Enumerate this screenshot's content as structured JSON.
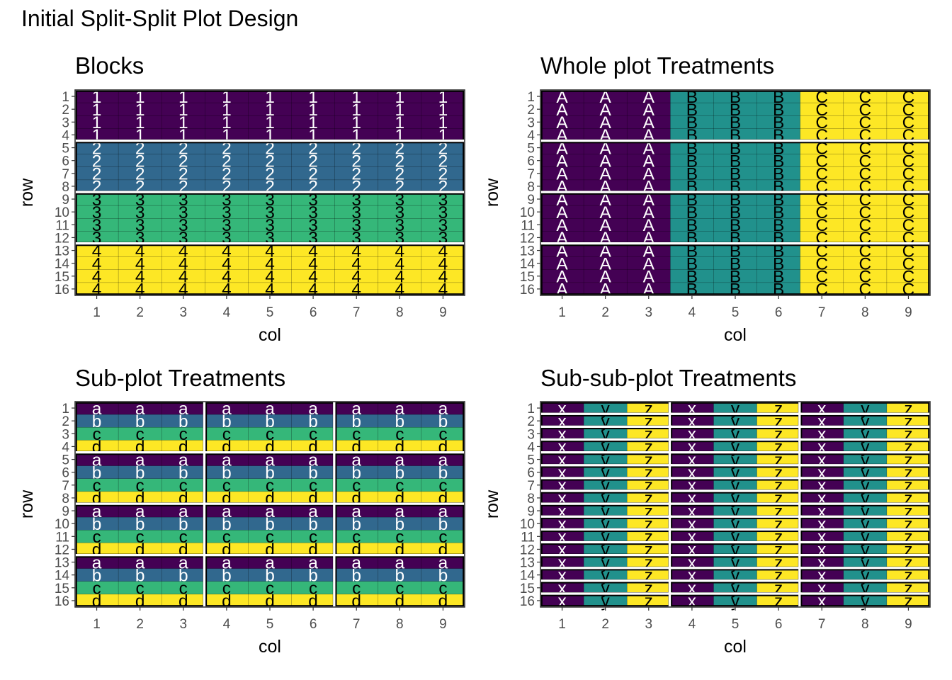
{
  "title": "Initial Split-Split Plot Design",
  "colors": {
    "purple": "#440154",
    "blue": "#31688E",
    "teal": "#21918C",
    "green": "#35B779",
    "yellow": "#FDE725",
    "plot_border": "#333333",
    "tick_text": "#4D4D4D"
  },
  "chart_data": [
    {
      "type": "heatmap",
      "title": "Blocks",
      "xlabel": "col",
      "ylabel": "row",
      "x": [
        1,
        2,
        3,
        4,
        5,
        6,
        7,
        8,
        9
      ],
      "y": [
        1,
        2,
        3,
        4,
        5,
        6,
        7,
        8,
        9,
        10,
        11,
        12,
        13,
        14,
        15,
        16
      ],
      "xticklabels": [
        "1",
        "2",
        "3",
        "4",
        "5",
        "6",
        "7",
        "8",
        "9"
      ],
      "yticklabels": [
        "1",
        "2",
        "3",
        "4",
        "5",
        "6",
        "7",
        "8",
        "9",
        "10",
        "11",
        "12",
        "13",
        "14",
        "15",
        "16"
      ],
      "factor": "block",
      "levels": [
        "1",
        "2",
        "3",
        "4"
      ],
      "level_colors": [
        "#440154",
        "#31688E",
        "#35B779",
        "#FDE725"
      ],
      "label_colors": [
        "#FFFFFF",
        "#FFFFFF",
        "#000000",
        "#000000"
      ],
      "assignment": "block = ceil(row / 4)",
      "row_groups": [
        [
          1,
          4
        ],
        [
          5,
          8
        ],
        [
          9,
          12
        ],
        [
          13,
          16
        ]
      ],
      "col_groups": [
        [
          1,
          9
        ]
      ]
    },
    {
      "type": "heatmap",
      "title": "Whole plot Treatments",
      "xlabel": "col",
      "ylabel": "row",
      "x": [
        1,
        2,
        3,
        4,
        5,
        6,
        7,
        8,
        9
      ],
      "y": [
        1,
        2,
        3,
        4,
        5,
        6,
        7,
        8,
        9,
        10,
        11,
        12,
        13,
        14,
        15,
        16
      ],
      "xticklabels": [
        "1",
        "2",
        "3",
        "4",
        "5",
        "6",
        "7",
        "8",
        "9"
      ],
      "yticklabels": [
        "1",
        "2",
        "3",
        "4",
        "5",
        "6",
        "7",
        "8",
        "9",
        "10",
        "11",
        "12",
        "13",
        "14",
        "15",
        "16"
      ],
      "factor": "whole-plot treatment",
      "levels": [
        "A",
        "B",
        "C"
      ],
      "level_colors": [
        "#440154",
        "#21918C",
        "#FDE725"
      ],
      "label_colors": [
        "#FFFFFF",
        "#000000",
        "#000000"
      ],
      "assignment": "cols 1-3 = A, cols 4-6 = B, cols 7-9 = C",
      "row_groups": [
        [
          1,
          4
        ],
        [
          5,
          8
        ],
        [
          9,
          12
        ],
        [
          13,
          16
        ]
      ],
      "col_groups": [
        [
          1,
          9
        ]
      ]
    },
    {
      "type": "heatmap",
      "title": "Sub-plot Treatments",
      "xlabel": "col",
      "ylabel": "row",
      "x": [
        1,
        2,
        3,
        4,
        5,
        6,
        7,
        8,
        9
      ],
      "y": [
        1,
        2,
        3,
        4,
        5,
        6,
        7,
        8,
        9,
        10,
        11,
        12,
        13,
        14,
        15,
        16
      ],
      "xticklabels": [
        "1",
        "2",
        "3",
        "4",
        "5",
        "6",
        "7",
        "8",
        "9"
      ],
      "yticklabels": [
        "1",
        "2",
        "3",
        "4",
        "5",
        "6",
        "7",
        "8",
        "9",
        "10",
        "11",
        "12",
        "13",
        "14",
        "15",
        "16"
      ],
      "factor": "sub-plot treatment",
      "levels": [
        "a",
        "b",
        "c",
        "d"
      ],
      "level_colors": [
        "#440154",
        "#31688E",
        "#35B779",
        "#FDE725"
      ],
      "label_colors": [
        "#FFFFFF",
        "#FFFFFF",
        "#000000",
        "#000000"
      ],
      "assignment": "row 1,5,9,13 = a; 2,6,10,14 = b; 3,7,11,15 = c; 4,8,12,16 = d",
      "row_groups": [
        [
          1,
          4
        ],
        [
          5,
          8
        ],
        [
          9,
          12
        ],
        [
          13,
          16
        ]
      ],
      "col_groups": [
        [
          1,
          3
        ],
        [
          4,
          6
        ],
        [
          7,
          9
        ]
      ]
    },
    {
      "type": "heatmap",
      "title": "Sub-sub-plot Treatments",
      "xlabel": "col",
      "ylabel": "row",
      "x": [
        1,
        2,
        3,
        4,
        5,
        6,
        7,
        8,
        9
      ],
      "y": [
        1,
        2,
        3,
        4,
        5,
        6,
        7,
        8,
        9,
        10,
        11,
        12,
        13,
        14,
        15,
        16
      ],
      "xticklabels": [
        "1",
        "2",
        "3",
        "4",
        "5",
        "6",
        "7",
        "8",
        "9"
      ],
      "yticklabels": [
        "1",
        "2",
        "3",
        "4",
        "5",
        "6",
        "7",
        "8",
        "9",
        "10",
        "11",
        "12",
        "13",
        "14",
        "15",
        "16"
      ],
      "factor": "sub-sub-plot treatment",
      "levels": [
        "x",
        "y",
        "z"
      ],
      "level_colors": [
        "#440154",
        "#21918C",
        "#FDE725"
      ],
      "label_colors": [
        "#FFFFFF",
        "#000000",
        "#000000"
      ],
      "assignment": "col 1,4,7 = x; 2,5,8 = y; 3,6,9 = z",
      "row_groups": [
        [
          1,
          1
        ],
        [
          2,
          2
        ],
        [
          3,
          3
        ],
        [
          4,
          4
        ],
        [
          5,
          5
        ],
        [
          6,
          6
        ],
        [
          7,
          7
        ],
        [
          8,
          8
        ],
        [
          9,
          9
        ],
        [
          10,
          10
        ],
        [
          11,
          11
        ],
        [
          12,
          12
        ],
        [
          13,
          13
        ],
        [
          14,
          14
        ],
        [
          15,
          15
        ],
        [
          16,
          16
        ]
      ],
      "col_groups": [
        [
          1,
          3
        ],
        [
          4,
          6
        ],
        [
          7,
          9
        ]
      ]
    }
  ]
}
